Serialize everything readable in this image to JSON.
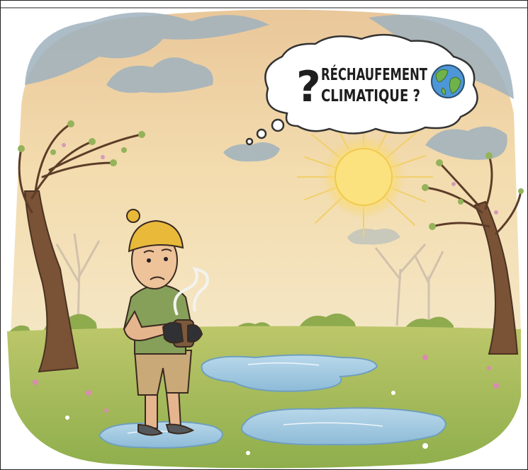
{
  "thought_bubble": {
    "symbol": "?",
    "lines": [
      "RÉCHAUFEMENT",
      "CLIMATIQUE ?"
    ]
  }
}
